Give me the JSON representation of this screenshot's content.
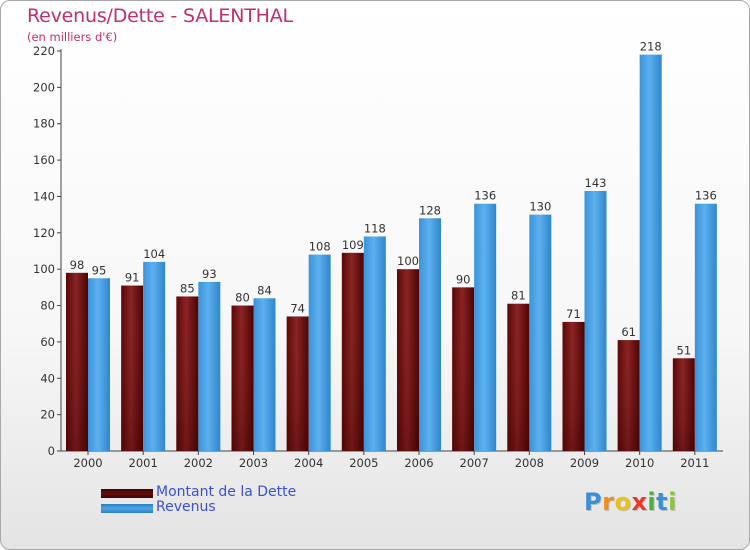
{
  "title": "Revenus/Dette - SALENTHAL",
  "subtitle": "(en milliers d'€)",
  "colors": {
    "title": "#c0306b",
    "debt": "#7a1a1a",
    "revenue": "#4fa3e3",
    "legend_text": "#3b4fd6"
  },
  "legend": [
    {
      "label": "Montant de la Dette",
      "color": "#6b0d0d"
    },
    {
      "label": "Revenus",
      "color": "#4fa3e3"
    }
  ],
  "logo": {
    "letters": [
      "P",
      "r",
      "o",
      "x",
      "i",
      "t",
      "i"
    ],
    "colors": [
      "#3a8fd9",
      "#f28c1c",
      "#e8c21a",
      "#e63c2e",
      "#4caf3e",
      "#3a8fd9",
      "#8cc63f"
    ]
  },
  "chart_data": {
    "type": "bar",
    "categories": [
      "2000",
      "2001",
      "2002",
      "2003",
      "2004",
      "2005",
      "2006",
      "2007",
      "2008",
      "2009",
      "2010",
      "2011"
    ],
    "series": [
      {
        "name": "Montant de la Dette",
        "values": [
          98,
          91,
          85,
          80,
          74,
          109,
          100,
          90,
          81,
          71,
          61,
          51
        ]
      },
      {
        "name": "Revenus",
        "values": [
          95,
          104,
          93,
          84,
          108,
          118,
          128,
          136,
          130,
          143,
          218,
          136
        ]
      }
    ],
    "ylim": [
      0,
      220
    ],
    "yticks": [
      0,
      20,
      40,
      60,
      80,
      100,
      120,
      140,
      160,
      180,
      200,
      220
    ],
    "grid": false,
    "data_labels": true,
    "legend_position": "bottom-left"
  }
}
